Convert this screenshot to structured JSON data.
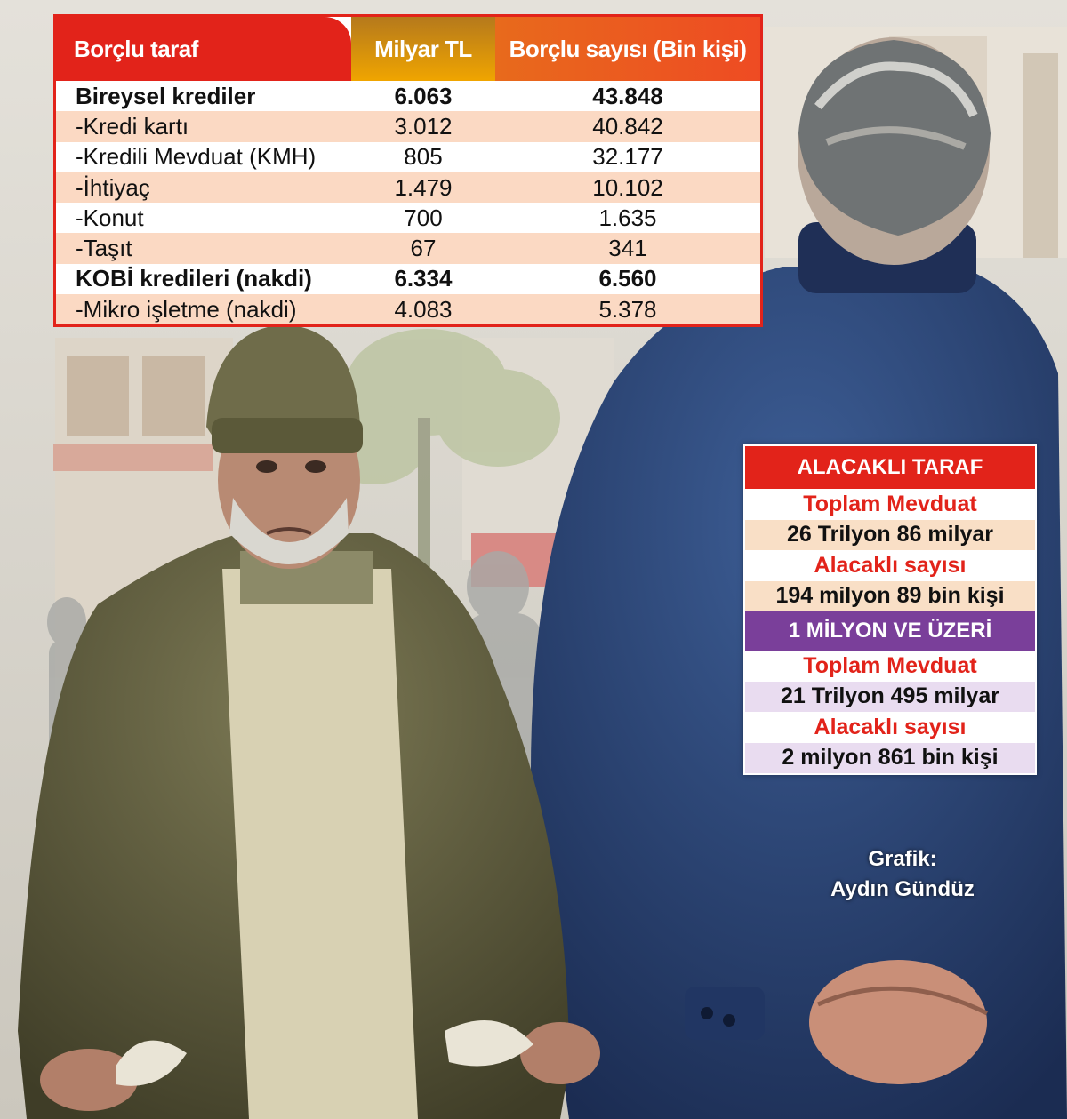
{
  "chart_data": {
    "type": "table",
    "debtor_table": {
      "columns": [
        "Borçlu taraf",
        "Milyar TL",
        "Borçlu sayısı (Bin kişi)"
      ],
      "rows": [
        {
          "label": "Bireysel krediler",
          "value": "6.063",
          "count": "43.848",
          "bold": true
        },
        {
          "label": "-Kredi kartı",
          "value": "3.012",
          "count": "40.842",
          "bold": false
        },
        {
          "label": "-Kredili Mevduat (KMH)",
          "value": "805",
          "count": "32.177",
          "bold": false
        },
        {
          "label": "-İhtiyaç",
          "value": "1.479",
          "count": "10.102",
          "bold": false
        },
        {
          "label": "-Konut",
          "value": "700",
          "count": "1.635",
          "bold": false
        },
        {
          "label": "-Taşıt",
          "value": "67",
          "count": "341",
          "bold": false
        },
        {
          "label": "KOBİ kredileri (nakdi)",
          "value": "6.334",
          "count": "6.560",
          "bold": true
        },
        {
          "label": "-Mikro işletme (nakdi)",
          "value": "4.083",
          "count": "5.378",
          "bold": false
        }
      ]
    },
    "creditor_panel": {
      "title": "ALACAKLI TARAF",
      "total_deposit_label": "Toplam Mevduat",
      "total_deposit_value": "26 Trilyon 86 milyar",
      "creditor_count_label": "Alacaklı sayısı",
      "creditor_count_value": "194 milyon 89 bin kişi",
      "subgroup_title": "1 MİLYON VE ÜZERİ",
      "subgroup_deposit_label": "Toplam Mevduat",
      "subgroup_deposit_value": "21 Trilyon 495 milyar",
      "subgroup_count_label": "Alacaklı sayısı",
      "subgroup_count_value": "2 milyon 861 bin kişi"
    }
  },
  "credit": {
    "label": "Grafik:",
    "author": "Aydın Gündüz"
  },
  "colors": {
    "accent_red": "#e2231a",
    "header_gold": "#f0a500",
    "header_orange": "#ee4b23",
    "row_peach": "#fbd9c3",
    "band_purple": "#7a3f9a",
    "row_lilac": "#e9dcf0"
  },
  "illustration": {
    "left_figure": "poor-man-with-empty-pockets",
    "right_figure": "businessman-in-suit-back-view"
  }
}
